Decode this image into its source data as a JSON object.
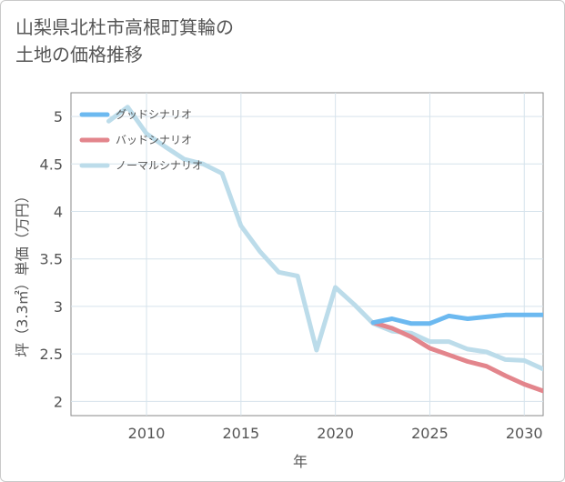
{
  "title_line1": "山梨県北杜市高根町箕輪の",
  "title_line2": "土地の価格推移",
  "chart_data": {
    "type": "line",
    "xlabel": "年",
    "ylabel": "坪（3.3㎡）単価（万円）",
    "xlim": [
      2006,
      2031
    ],
    "ylim": [
      1.85,
      5.25
    ],
    "x_ticks": [
      2010,
      2015,
      2020,
      2025,
      2030
    ],
    "y_ticks": [
      2,
      2.5,
      3,
      3.5,
      4,
      4.5,
      5
    ],
    "x_tick_labels": [
      "2010",
      "2015",
      "2020",
      "2025",
      "2030"
    ],
    "y_tick_labels": [
      "2",
      "2.5",
      "3",
      "3.5",
      "4",
      "4.5",
      "5"
    ],
    "grid": true,
    "legend_position": "top-left",
    "series": [
      {
        "name": "グッドシナリオ",
        "color": "#6cb9f0",
        "x": [
          2022,
          2023,
          2024,
          2025,
          2026,
          2027,
          2028,
          2029,
          2030,
          2031
        ],
        "y": [
          2.83,
          2.87,
          2.82,
          2.82,
          2.9,
          2.87,
          2.89,
          2.91,
          2.91,
          2.91
        ]
      },
      {
        "name": "バッドシナリオ",
        "color": "#e3858c",
        "x": [
          2022,
          2023,
          2024,
          2025,
          2026,
          2027,
          2028,
          2029,
          2030,
          2031
        ],
        "y": [
          2.83,
          2.77,
          2.68,
          2.56,
          2.49,
          2.42,
          2.37,
          2.27,
          2.18,
          2.11
        ]
      },
      {
        "name": "ノーマルシナリオ",
        "color": "#bcdcea",
        "x": [
          2008,
          2009,
          2010,
          2011,
          2012,
          2013,
          2014,
          2015,
          2016,
          2017,
          2018,
          2019,
          2020,
          2021,
          2022,
          2023,
          2024,
          2025,
          2026,
          2027,
          2028,
          2029,
          2030,
          2031
        ],
        "y": [
          4.95,
          5.1,
          4.82,
          4.68,
          4.55,
          4.5,
          4.4,
          3.85,
          3.58,
          3.36,
          3.32,
          2.54,
          3.2,
          3.02,
          2.82,
          2.74,
          2.72,
          2.63,
          2.63,
          2.55,
          2.52,
          2.44,
          2.43,
          2.34
        ]
      }
    ]
  }
}
